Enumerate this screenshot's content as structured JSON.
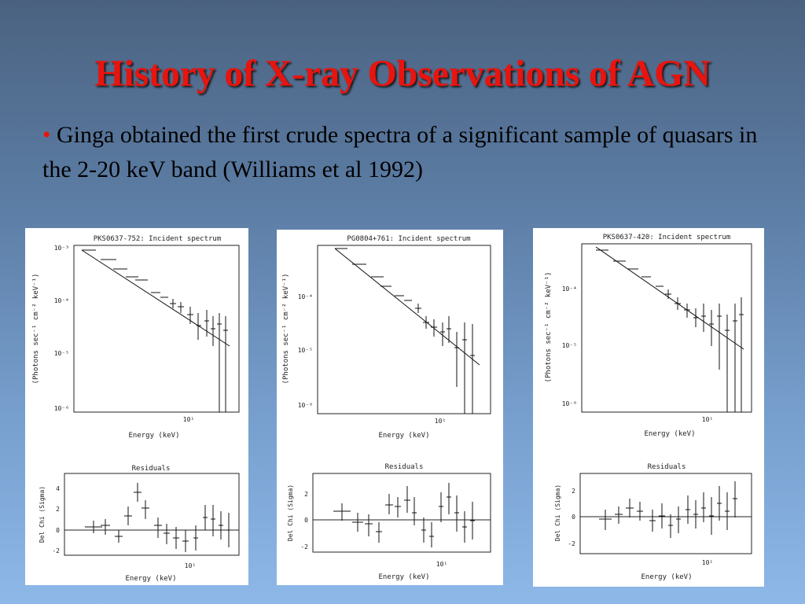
{
  "slide": {
    "title": "History of X-ray Observations of AGN",
    "bullet_marker": "•",
    "bullet_text": " Ginga obtained the first crude spectra of a significant sample of quasars in the 2-20 keV band (Williams et al 1992)"
  },
  "colors": {
    "title": "#e8140f",
    "bullet": "#e8140f",
    "text": "#000000"
  },
  "panels": [
    {
      "top_title": "PKS0637-752: Incident spectrum",
      "ylabel": "(Photons sec⁻¹ cm⁻² keV⁻¹)",
      "y_ticks": [
        "10⁻³",
        "10⁻⁴",
        "10⁻⁵",
        "10⁻⁶"
      ],
      "x_tick": "10¹",
      "xlabel": "Energy (keV)",
      "res_title": "Residuals",
      "res_ylabel": "Del Chi (Sigma)",
      "res_ticks": [
        "4",
        "2",
        "0",
        "-2"
      ],
      "res_xtick": "10¹",
      "res_xlabel": "Energy (keV)"
    },
    {
      "top_title": "PG0804+761: Incident spectrum",
      "ylabel": "(Photons sec⁻¹ cm⁻² keV⁻¹)",
      "y_ticks": [
        "10⁻⁴",
        "10⁻⁵",
        "10⁻⁶"
      ],
      "x_tick": "10¹",
      "xlabel": "Energy (keV)",
      "res_title": "Residuals",
      "res_ylabel": "Del Chi (Sigma)",
      "res_ticks": [
        "2",
        "0",
        "-2"
      ],
      "res_xtick": "10¹",
      "res_xlabel": "Energy (keV)"
    },
    {
      "top_title": "PKS0637-420: Incident spectrum",
      "ylabel": "(Photons sec⁻¹ cm⁻² keV⁻¹)",
      "y_ticks": [
        "10⁻⁴",
        "10⁻⁵",
        "10⁻⁶"
      ],
      "x_tick": "10¹",
      "xlabel": "Energy (keV)",
      "res_title": "Residuals",
      "res_ylabel": "Del Chi (Sigma)",
      "res_ticks": [
        "2",
        "0",
        "-2"
      ],
      "res_xtick": "10¹",
      "res_xlabel": "Energy (keV)"
    }
  ]
}
